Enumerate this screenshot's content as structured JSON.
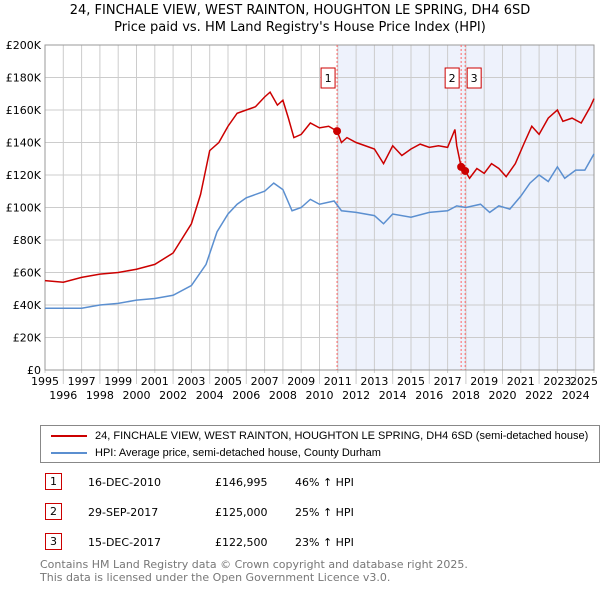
{
  "title": "24, FINCHALE VIEW, WEST RAINTON, HOUGHTON LE SPRING, DH4 6SD",
  "subtitle": "Price paid vs. HM Land Registry's House Price Index (HPI)",
  "chart_data": {
    "type": "line",
    "ylim": [
      0,
      200000
    ],
    "xlim": [
      1995,
      2025
    ],
    "yticks": [
      0,
      20000,
      40000,
      60000,
      80000,
      100000,
      120000,
      140000,
      160000,
      180000,
      200000
    ],
    "ytick_labels": [
      "£0",
      "£20K",
      "£40K",
      "£60K",
      "£80K",
      "£100K",
      "£120K",
      "£140K",
      "£160K",
      "£180K",
      "£200K"
    ],
    "xticks": [
      1995,
      1996,
      1997,
      1998,
      1999,
      2000,
      2001,
      2002,
      2003,
      2004,
      2005,
      2006,
      2007,
      2008,
      2009,
      2010,
      2011,
      2012,
      2013,
      2014,
      2015,
      2016,
      2017,
      2018,
      2019,
      2020,
      2021,
      2022,
      2023,
      2024,
      2025
    ],
    "grid": true,
    "series": [
      {
        "name": "24, FINCHALE VIEW, WEST RAINTON, HOUGHTON LE SPRING, DH4 6SD (semi-detached house)",
        "color": "#cc0000",
        "x": [
          1995,
          1996,
          1997,
          1998,
          1999,
          2000,
          2001,
          2002,
          2003,
          2003.5,
          2004,
          2004.5,
          2005,
          2005.5,
          2006,
          2006.5,
          2007,
          2007.3,
          2007.7,
          2008,
          2008.3,
          2008.6,
          2009,
          2009.5,
          2010,
          2010.5,
          2010.96,
          2011.2,
          2011.5,
          2012,
          2012.5,
          2013,
          2013.5,
          2014,
          2014.5,
          2015,
          2015.5,
          2016,
          2016.5,
          2017,
          2017.4,
          2017.5,
          2017.74,
          2017.96,
          2018.2,
          2018.6,
          2019,
          2019.4,
          2019.8,
          2020.2,
          2020.7,
          2021.2,
          2021.6,
          2022,
          2022.5,
          2023,
          2023.3,
          2023.8,
          2024.3,
          2024.8,
          2025
        ],
        "y": [
          55000,
          54000,
          57000,
          59000,
          60000,
          62000,
          65000,
          72000,
          90000,
          108000,
          135000,
          140000,
          150000,
          158000,
          160000,
          162000,
          168000,
          171000,
          163000,
          166000,
          155000,
          143000,
          145000,
          152000,
          149000,
          150000,
          146995,
          140000,
          143000,
          140000,
          138000,
          136000,
          127000,
          138000,
          132000,
          136000,
          139000,
          137000,
          138000,
          137000,
          148000,
          138000,
          125000,
          122500,
          118000,
          124000,
          121000,
          127000,
          124000,
          119000,
          127000,
          140000,
          150000,
          145000,
          155000,
          160000,
          153000,
          155000,
          152000,
          162000,
          167000
        ]
      },
      {
        "name": "HPI: Average price, semi-detached house, County Durham",
        "color": "#5b8fd0",
        "x": [
          1995,
          1997,
          1998,
          1999,
          2000,
          2001,
          2002,
          2003,
          2003.8,
          2004.4,
          2005,
          2005.5,
          2006,
          2007,
          2007.5,
          2008,
          2008.5,
          2009,
          2009.5,
          2010,
          2010.8,
          2011.2,
          2012,
          2013,
          2013.5,
          2014,
          2015,
          2016,
          2017,
          2017.5,
          2018,
          2018.8,
          2019.3,
          2019.8,
          2020.4,
          2021,
          2021.5,
          2022,
          2022.5,
          2023,
          2023.4,
          2024,
          2024.5,
          2025
        ],
        "y": [
          38000,
          38000,
          40000,
          41000,
          43000,
          44000,
          46000,
          52000,
          65000,
          85000,
          96000,
          102000,
          106000,
          110000,
          115000,
          111000,
          98000,
          100000,
          105000,
          102000,
          104000,
          98000,
          97000,
          95000,
          90000,
          96000,
          94000,
          97000,
          98000,
          101000,
          100000,
          102000,
          97000,
          101000,
          99000,
          107000,
          115000,
          120000,
          116000,
          125000,
          118000,
          123000,
          123000,
          133000
        ]
      }
    ],
    "markers": [
      {
        "label": "1",
        "x": 2010.96,
        "y": 146995
      },
      {
        "label": "2",
        "x": 2017.74,
        "y": 125000
      },
      {
        "label": "3",
        "x": 2017.96,
        "y": 122500
      }
    ],
    "shaded_from": 2011
  },
  "legend": {
    "property": "24, FINCHALE VIEW, WEST RAINTON, HOUGHTON LE SPRING, DH4 6SD (semi-detached house)",
    "hpi": "HPI: Average price, semi-detached house, County Durham"
  },
  "transactions": [
    {
      "num": "1",
      "date": "16-DEC-2010",
      "price": "£146,995",
      "hpi": "46% ↑ HPI"
    },
    {
      "num": "2",
      "date": "29-SEP-2017",
      "price": "£125,000",
      "hpi": "25% ↑ HPI"
    },
    {
      "num": "3",
      "date": "15-DEC-2017",
      "price": "£122,500",
      "hpi": "23% ↑ HPI"
    }
  ],
  "footer": {
    "line1": "Contains HM Land Registry data © Crown copyright and database right 2025.",
    "line2": "This data is licensed under the Open Government Licence v3.0."
  }
}
